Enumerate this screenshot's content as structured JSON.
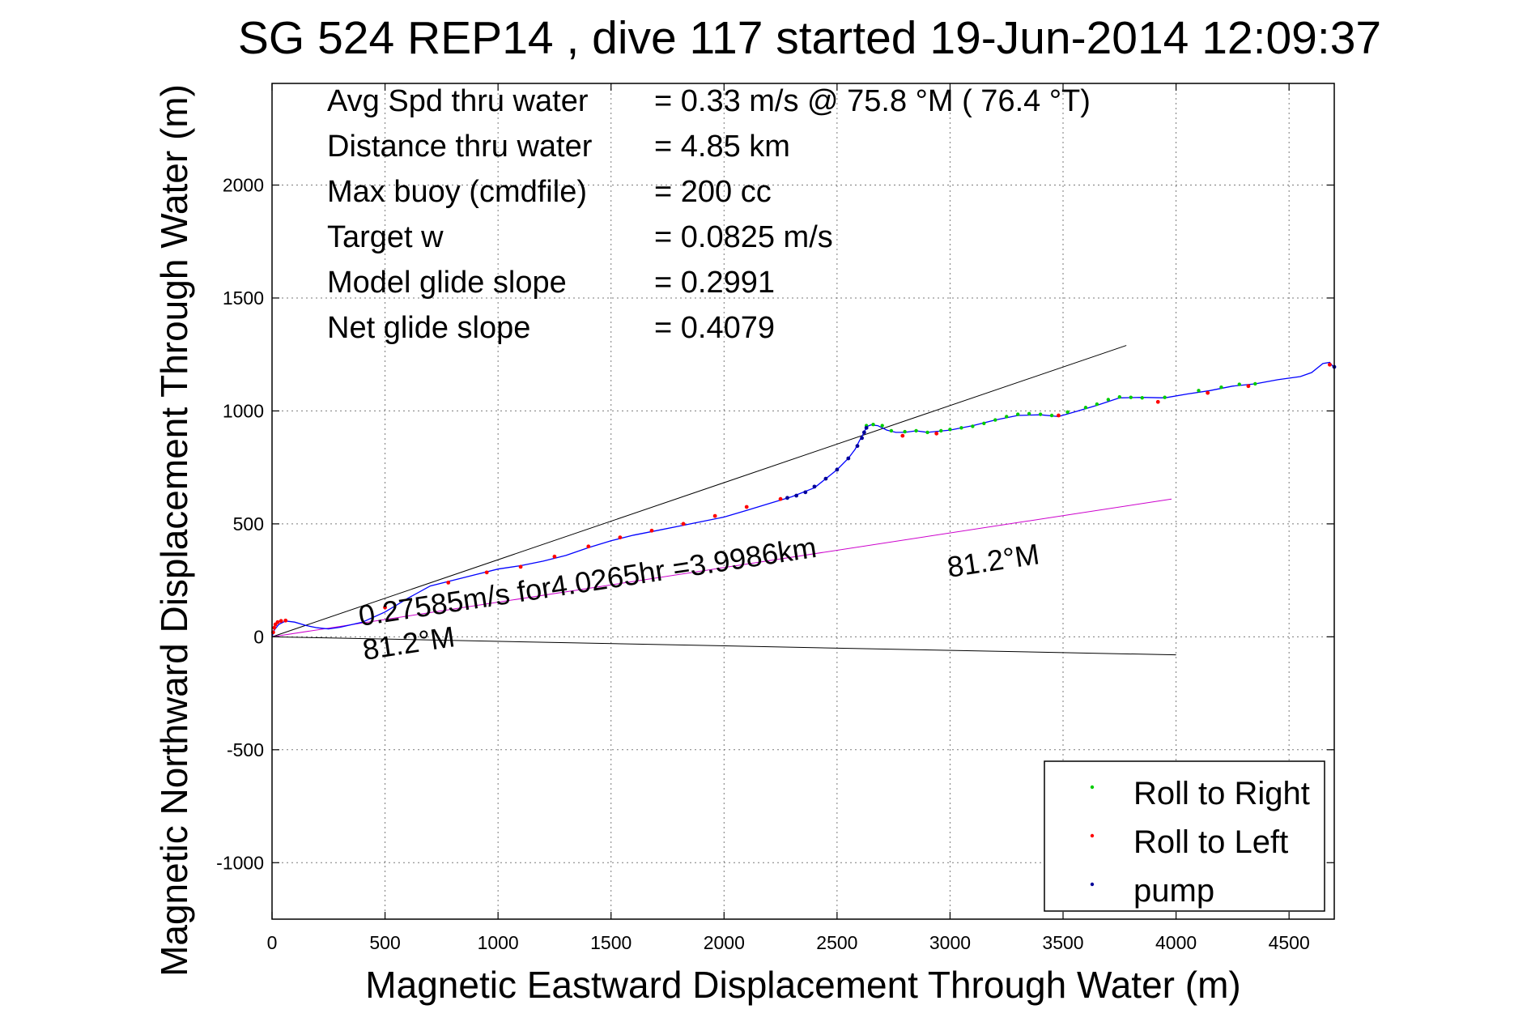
{
  "chart_data": {
    "type": "line",
    "title": "SG 524   REP14  , dive 117 started 19-Jun-2014 12:09:37",
    "xlabel": "Magnetic Eastward Displacement Through Water (m)",
    "ylabel": "Magnetic Northward Displacement Through Water (m)",
    "xlim": [
      0,
      4700
    ],
    "ylim": [
      -1250,
      2450
    ],
    "xticks": [
      0,
      500,
      1000,
      1500,
      2000,
      2500,
      3000,
      3500,
      4000,
      4500
    ],
    "yticks": [
      -1000,
      -500,
      0,
      500,
      1000,
      1500,
      2000
    ],
    "xtick_labels": [
      "0",
      "500",
      "1000",
      "1500",
      "2000",
      "2500",
      "3000",
      "3500",
      "4000",
      "4500"
    ],
    "ytick_labels": [
      "-1000",
      "-500",
      "0",
      "500",
      "1000",
      "1500",
      "2000"
    ],
    "grid": true,
    "legend_position": "bottom-right",
    "info_lines": [
      {
        "label": "Avg Spd thru water",
        "value": "=  0.33 m/s @  75.8 °M ( 76.4 °T)"
      },
      {
        "label": "Distance thru water",
        "value": "=  4.85 km"
      },
      {
        "label": "Max buoy (cmdfile)",
        "value": "= 200 cc"
      },
      {
        "label": "Target w",
        "value": "= 0.0825 m/s"
      },
      {
        "label": "Model glide slope",
        "value": "= 0.2991"
      },
      {
        "label": "Net glide slope",
        "value": "= 0.4079"
      }
    ],
    "annotations": {
      "course_label": "0.27585m/s for4.0265hr =3.9986km",
      "heading_label_near": "81.2°M",
      "heading_label_far": "81.2°M"
    },
    "reference_lines": [
      {
        "color": "#000000",
        "x": [
          0,
          3780
        ],
        "y": [
          0,
          1290
        ]
      },
      {
        "color": "#000000",
        "x": [
          0,
          4000
        ],
        "y": [
          0,
          -80
        ]
      },
      {
        "color": "#cc00cc",
        "x": [
          0,
          3980
        ],
        "y": [
          0,
          610
        ]
      }
    ],
    "series": [
      {
        "name": "Roll to Right",
        "color": "#00cc00",
        "points": [
          [
            2630,
            935
          ],
          [
            2660,
            940
          ],
          [
            2700,
            935
          ],
          [
            2740,
            912
          ],
          [
            2800,
            908
          ],
          [
            2850,
            912
          ],
          [
            2900,
            905
          ],
          [
            2960,
            912
          ],
          [
            3000,
            918
          ],
          [
            3050,
            925
          ],
          [
            3100,
            932
          ],
          [
            3150,
            945
          ],
          [
            3200,
            960
          ],
          [
            3250,
            975
          ],
          [
            3300,
            985
          ],
          [
            3350,
            988
          ],
          [
            3400,
            985
          ],
          [
            3450,
            980
          ],
          [
            3520,
            995
          ],
          [
            3600,
            1015
          ],
          [
            3650,
            1030
          ],
          [
            3700,
            1050
          ],
          [
            3750,
            1062
          ],
          [
            3800,
            1060
          ],
          [
            3850,
            1058
          ],
          [
            3950,
            1060
          ],
          [
            4100,
            1090
          ],
          [
            4200,
            1105
          ],
          [
            4280,
            1118
          ],
          [
            4350,
            1120
          ]
        ]
      },
      {
        "name": "Roll to Left",
        "color": "#ff0000",
        "points": [
          [
            5,
            20
          ],
          [
            10,
            40
          ],
          [
            15,
            55
          ],
          [
            25,
            65
          ],
          [
            40,
            70
          ],
          [
            60,
            72
          ],
          [
            500,
            130
          ],
          [
            780,
            240
          ],
          [
            950,
            285
          ],
          [
            1100,
            310
          ],
          [
            1250,
            355
          ],
          [
            1400,
            400
          ],
          [
            1540,
            440
          ],
          [
            1680,
            470
          ],
          [
            1820,
            500
          ],
          [
            1960,
            535
          ],
          [
            2100,
            575
          ],
          [
            2250,
            610
          ],
          [
            2790,
            890
          ],
          [
            2940,
            900
          ],
          [
            3480,
            980
          ],
          [
            3920,
            1040
          ],
          [
            4140,
            1080
          ],
          [
            4320,
            1110
          ],
          [
            4680,
            1205
          ]
        ]
      },
      {
        "name": "pump",
        "color": "#000099",
        "points": [
          [
            2280,
            615
          ],
          [
            2320,
            625
          ],
          [
            2360,
            640
          ],
          [
            2400,
            665
          ],
          [
            2450,
            700
          ],
          [
            2500,
            740
          ],
          [
            2550,
            790
          ],
          [
            2590,
            845
          ],
          [
            2610,
            880
          ],
          [
            2620,
            905
          ],
          [
            2630,
            925
          ],
          [
            4700,
            1195
          ]
        ]
      }
    ],
    "track": {
      "color": "#0000ff",
      "x": [
        0,
        10,
        30,
        60,
        100,
        150,
        200,
        250,
        300,
        400,
        500,
        600,
        700,
        800,
        900,
        1000,
        1100,
        1200,
        1300,
        1400,
        1500,
        1600,
        1700,
        1800,
        1900,
        2000,
        2100,
        2200,
        2300,
        2400,
        2500,
        2550,
        2580,
        2600,
        2620,
        2630,
        2650,
        2680,
        2720,
        2760,
        2800,
        2850,
        2900,
        2950,
        3000,
        3100,
        3200,
        3300,
        3400,
        3480,
        3550,
        3650,
        3750,
        3850,
        3950,
        4050,
        4150,
        4250,
        4350,
        4450,
        4550,
        4600,
        4650,
        4680,
        4700
      ],
      "y": [
        0,
        30,
        55,
        70,
        65,
        50,
        40,
        35,
        42,
        65,
        110,
        170,
        225,
        250,
        275,
        300,
        315,
        335,
        360,
        395,
        425,
        450,
        470,
        490,
        510,
        530,
        560,
        590,
        620,
        660,
        740,
        790,
        830,
        870,
        905,
        930,
        938,
        935,
        915,
        905,
        905,
        912,
        905,
        910,
        915,
        935,
        960,
        980,
        983,
        975,
        995,
        1025,
        1058,
        1060,
        1058,
        1075,
        1090,
        1110,
        1120,
        1138,
        1152,
        1170,
        1210,
        1215,
        1190
      ]
    }
  },
  "legend": {
    "items": [
      {
        "label": "Roll to Right",
        "color": "#00cc00"
      },
      {
        "label": "Roll to Left",
        "color": "#ff0000"
      },
      {
        "label": "pump",
        "color": "#000099"
      }
    ]
  }
}
